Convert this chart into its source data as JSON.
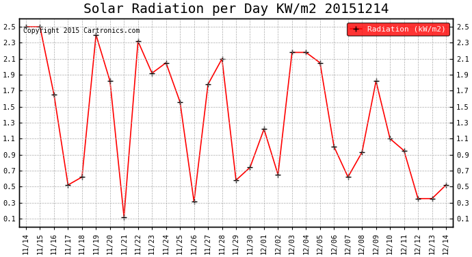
{
  "title": "Solar Radiation per Day KW/m2 20151214",
  "copyright_text": "Copyright 2015 Cartronics.com",
  "legend_label": "Radiation (kW/m2)",
  "dates": [
    "11/14",
    "11/15",
    "11/16",
    "11/17",
    "11/18",
    "11/19",
    "11/20",
    "11/21",
    "11/22",
    "11/23",
    "11/24",
    "11/25",
    "11/26",
    "11/27",
    "11/28",
    "11/29",
    "11/30",
    "12/01",
    "12/02",
    "12/03",
    "12/04",
    "12/05",
    "12/06",
    "12/07",
    "12/08",
    "12/09",
    "12/10",
    "12/11",
    "12/12",
    "12/13",
    "12/14"
  ],
  "values": [
    2.5,
    2.5,
    1.65,
    0.52,
    0.62,
    2.4,
    1.82,
    0.12,
    2.32,
    1.92,
    2.05,
    1.56,
    0.31,
    1.78,
    2.1,
    0.58,
    0.74,
    1.22,
    0.65,
    2.18,
    2.18,
    2.05,
    1.0,
    0.62,
    0.93,
    1.82,
    1.1,
    0.95,
    0.35,
    0.35,
    0.52
  ],
  "ylim": [
    0.0,
    2.6
  ],
  "yticks": [
    0.1,
    0.3,
    0.5,
    0.7,
    0.9,
    1.1,
    1.3,
    1.5,
    1.7,
    1.9,
    2.1,
    2.3,
    2.5
  ],
  "line_color": "red",
  "marker": "+",
  "marker_color": "black",
  "marker_size": 6,
  "line_width": 1.2,
  "bg_color": "white",
  "grid_color": "#aaaaaa",
  "title_fontsize": 14,
  "tick_fontsize": 7.5,
  "legend_bg": "red",
  "legend_fg": "white"
}
